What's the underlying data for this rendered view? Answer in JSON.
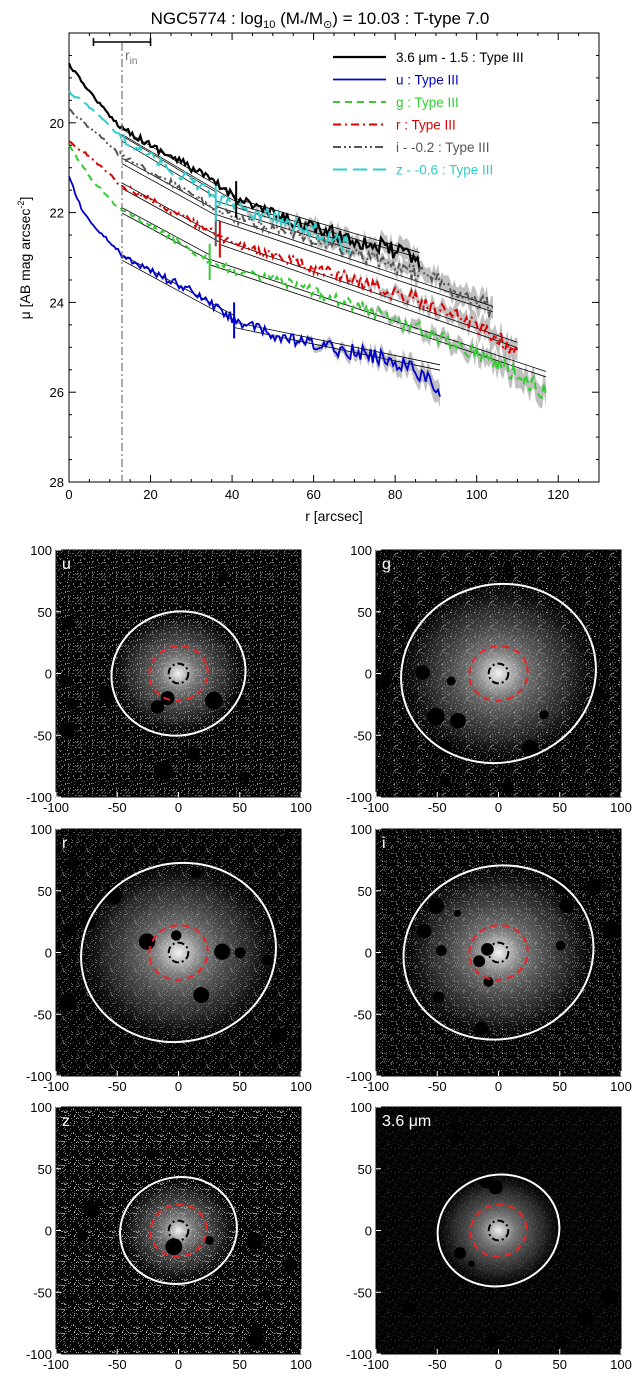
{
  "chart_data": [
    {
      "type": "line",
      "title": "NGC5774 : log10 (M*/M⊙) = 10.03 : T-type 7.0",
      "title_parts": {
        "galaxy": "NGC5774 : log",
        "log_sub": "10",
        "mass_open": " (M",
        "mass_star": "*",
        "mass_div": "/M",
        "mass_sun": "⊙",
        "mass_close": ") = 10.03 : T-type 7.0"
      },
      "xlabel": "r [arcsec]",
      "ylabel": "μ [AB mag arcsec⁻²]",
      "ylabel_parts": {
        "main": "μ [AB mag arcsec",
        "sup": "-2",
        "end": "]"
      },
      "xlim": [
        0,
        130
      ],
      "ylim": [
        28,
        18
      ],
      "yreversed": true,
      "xticks": [
        0,
        20,
        40,
        60,
        80,
        100,
        120
      ],
      "yticks": [
        20,
        22,
        24,
        26,
        28
      ],
      "grid": false,
      "legend_position": "top-right",
      "rin_label": "r",
      "rin_sub": "in",
      "rin_value": 13,
      "rin_errorbar": [
        6,
        20
      ],
      "series": [
        {
          "name": "3.6 μm - 1.5 : Type III",
          "color": "#000000",
          "dash": "solid",
          "width": 2.2,
          "break_r": 41,
          "break_mu": 21.7,
          "xmax": 86,
          "x": [
            0,
            5,
            10,
            13,
            20,
            30,
            40,
            50,
            60,
            70,
            80,
            86
          ],
          "y": [
            18.7,
            19.3,
            19.85,
            20.1,
            20.5,
            21.0,
            21.6,
            22.05,
            22.35,
            22.6,
            22.85,
            23.1
          ],
          "fits": [
            {
              "x": [
                13,
                41
              ],
              "y": [
                20.2,
                21.7
              ]
            },
            {
              "x": [
                41,
                86
              ],
              "y": [
                21.75,
                22.95
              ]
            }
          ]
        },
        {
          "name": "u : Type III",
          "color": "#0000cc",
          "dash": "solid",
          "width": 1.8,
          "break_r": 40.5,
          "break_mu": 24.4,
          "xmax": 91,
          "x": [
            0,
            3,
            6,
            10,
            13,
            20,
            30,
            40,
            50,
            60,
            70,
            80,
            86,
            91
          ],
          "y": [
            21.2,
            21.9,
            22.3,
            22.65,
            22.95,
            23.3,
            23.75,
            24.35,
            24.75,
            24.95,
            25.1,
            25.3,
            25.55,
            26.05
          ],
          "fits": [
            {
              "x": [
                13,
                40.5
              ],
              "y": [
                23.0,
                24.35
              ]
            },
            {
              "x": [
                40.5,
                91
              ],
              "y": [
                24.5,
                25.45
              ]
            }
          ]
        },
        {
          "name": "g : Type III",
          "color": "#33cc33",
          "dash": "dash",
          "width": 2,
          "break_r": 34.5,
          "break_mu": 23.1,
          "xmax": 117,
          "x": [
            0,
            5,
            10,
            13,
            20,
            30,
            40,
            50,
            60,
            70,
            80,
            90,
            100,
            110,
            117
          ],
          "y": [
            20.5,
            21.2,
            21.7,
            21.95,
            22.3,
            22.85,
            23.3,
            23.5,
            23.75,
            24.05,
            24.4,
            24.75,
            25.1,
            25.6,
            26.0
          ],
          "fits": [
            {
              "x": [
                13,
                34.5
              ],
              "y": [
                21.95,
                23.0
              ]
            },
            {
              "x": [
                34.5,
                117
              ],
              "y": [
                23.1,
                25.6
              ]
            }
          ]
        },
        {
          "name": "r : Type III",
          "color": "#dd0000",
          "dash": "dashdot",
          "width": 2,
          "break_r": 37,
          "break_mu": 22.6,
          "xmax": 110,
          "x": [
            0,
            5,
            10,
            13,
            20,
            30,
            40,
            50,
            60,
            70,
            80,
            90,
            100,
            110
          ],
          "y": [
            20.4,
            20.75,
            21.15,
            21.4,
            21.7,
            22.2,
            22.7,
            22.95,
            23.25,
            23.5,
            23.8,
            24.1,
            24.5,
            25.1
          ],
          "fits": [
            {
              "x": [
                13,
                37
              ],
              "y": [
                21.4,
                22.6
              ]
            },
            {
              "x": [
                37,
                110
              ],
              "y": [
                22.65,
                24.95
              ]
            }
          ]
        },
        {
          "name": "i - -0.2 : Type III",
          "color": "#555555",
          "dash": "dashdotdot",
          "width": 2,
          "break_r": 36,
          "break_mu": 22.35,
          "xmax": 104,
          "x": [
            0,
            5,
            10,
            13,
            20,
            30,
            40,
            50,
            60,
            70,
            80,
            90,
            100,
            104
          ],
          "y": [
            19.7,
            20.1,
            20.5,
            20.75,
            21.1,
            21.6,
            22.1,
            22.35,
            22.6,
            22.9,
            23.2,
            23.5,
            23.9,
            24.2
          ],
          "fits": [
            {
              "x": [
                13,
                36
              ],
              "y": [
                20.85,
                22.0
              ]
            },
            {
              "x": [
                36,
                104
              ],
              "y": [
                22.1,
                24.15
              ]
            }
          ]
        },
        {
          "name": "z - -0.6 : Type III",
          "color": "#33cccc",
          "dash": "longdash",
          "width": 2,
          "break_r": 36,
          "break_mu": 21.8,
          "xmax": 69,
          "x": [
            0,
            5,
            10,
            13,
            20,
            30,
            40,
            50,
            60,
            65,
            69
          ],
          "y": [
            19.3,
            19.65,
            20.05,
            20.35,
            20.75,
            21.3,
            21.85,
            22.1,
            22.4,
            22.6,
            22.7
          ],
          "fits": [
            {
              "x": [
                13,
                36
              ],
              "y": [
                20.35,
                21.6
              ]
            },
            {
              "x": [
                36,
                69
              ],
              "y": [
                21.8,
                22.75
              ]
            }
          ]
        }
      ]
    },
    {
      "type": "image-grid",
      "xlim": [
        -100,
        100
      ],
      "ylim": [
        -100,
        100
      ],
      "xticks": [
        -100,
        -50,
        0,
        50,
        100
      ],
      "yticks": [
        -100,
        -50,
        0,
        50,
        100
      ],
      "panels": [
        {
          "label": "u",
          "outer_rx": 55,
          "outer_ry": 50,
          "mid_rx": 24,
          "mid_ry": 22,
          "in_rx": 8,
          "in_ry": 8,
          "noise": 0.55
        },
        {
          "label": "g",
          "outer_rx": 80,
          "outer_ry": 72,
          "mid_rx": 24,
          "mid_ry": 22,
          "in_rx": 8,
          "in_ry": 8,
          "noise": 0.45
        },
        {
          "label": "r",
          "outer_rx": 80,
          "outer_ry": 72,
          "mid_rx": 24,
          "mid_ry": 22,
          "in_rx": 8,
          "in_ry": 8,
          "noise": 0.4
        },
        {
          "label": "i",
          "outer_rx": 78,
          "outer_ry": 70,
          "mid_rx": 24,
          "mid_ry": 22,
          "in_rx": 8,
          "in_ry": 8,
          "noise": 0.45
        },
        {
          "label": "z",
          "outer_rx": 48,
          "outer_ry": 43,
          "mid_rx": 23,
          "mid_ry": 21,
          "in_rx": 8,
          "in_ry": 8,
          "noise": 0.65
        },
        {
          "label": "3.6 μm",
          "outer_rx": 50,
          "outer_ry": 45,
          "mid_rx": 23,
          "mid_ry": 21,
          "in_rx": 8,
          "in_ry": 8,
          "noise": 0.15
        }
      ]
    }
  ],
  "colors": {
    "outer_ellipse": "#ffffff",
    "mid_ellipse": "#ee2222",
    "inner_ellipse": "#000000",
    "error_band": "#b0b0b0",
    "rin_line": "#777777"
  }
}
